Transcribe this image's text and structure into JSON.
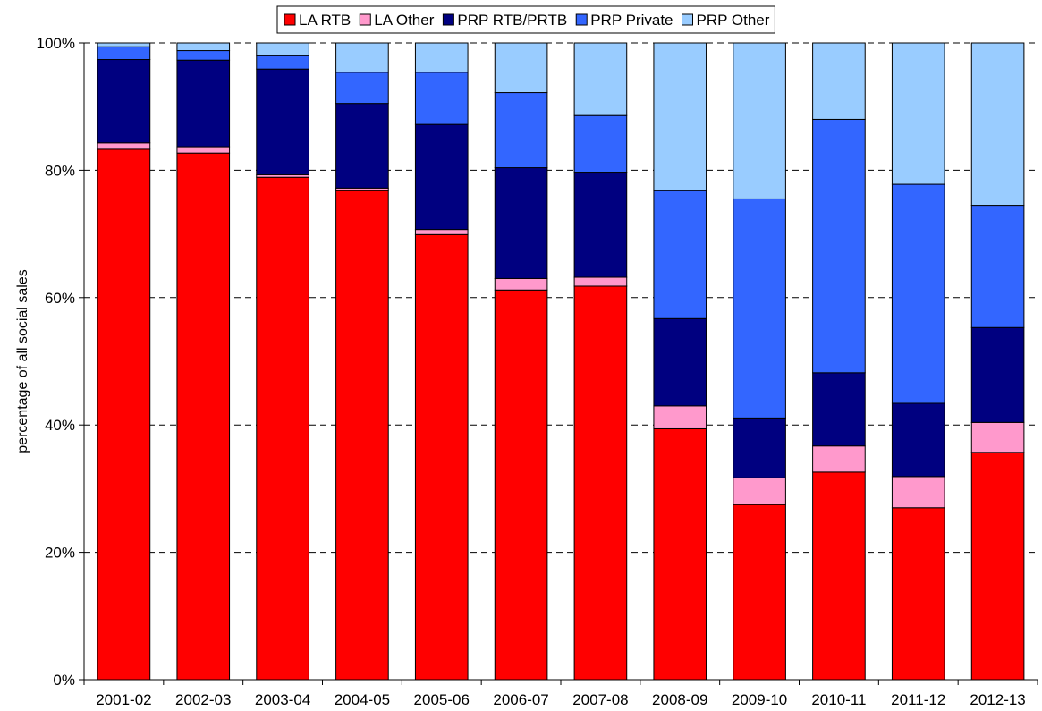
{
  "chart_data": {
    "type": "bar",
    "stacked": true,
    "percent_axis": true,
    "title": "",
    "xlabel": "",
    "ylabel": "percentage of all social sales",
    "ylim": [
      0,
      100
    ],
    "y_ticks": [
      0,
      20,
      40,
      60,
      80,
      100
    ],
    "y_tick_labels": [
      "0%",
      "20%",
      "40%",
      "60%",
      "80%",
      "100%"
    ],
    "grid": "horizontal dashed",
    "legend_position": "top",
    "categories": [
      "2001-02",
      "2002-03",
      "2003-04",
      "2004-05",
      "2005-06",
      "2006-07",
      "2007-08",
      "2008-09",
      "2009-10",
      "2010-11",
      "2011-12",
      "2012-13"
    ],
    "series": [
      {
        "name": "LA RTB",
        "color": "#ff0000",
        "values": [
          83.3,
          82.7,
          78.9,
          76.8,
          69.9,
          61.2,
          61.8,
          39.4,
          27.5,
          32.6,
          27.0,
          35.7
        ]
      },
      {
        "name": "LA Other",
        "color": "#ff99cc",
        "values": [
          1.0,
          1.0,
          0.4,
          0.4,
          0.8,
          1.8,
          1.4,
          3.6,
          4.2,
          4.1,
          4.9,
          4.7
        ]
      },
      {
        "name": "PRP RTB/PRTB",
        "color": "#000080",
        "values": [
          13.1,
          13.6,
          16.6,
          13.3,
          16.5,
          17.4,
          16.5,
          13.7,
          9.4,
          11.5,
          11.5,
          14.9
        ]
      },
      {
        "name": "PRP Private",
        "color": "#3366ff",
        "values": [
          2.0,
          1.5,
          2.1,
          4.9,
          8.2,
          11.8,
          8.9,
          20.1,
          34.4,
          39.8,
          34.4,
          19.2
        ]
      },
      {
        "name": "PRP Other",
        "color": "#99ccff",
        "values": [
          0.6,
          1.2,
          2.0,
          4.6,
          4.6,
          7.8,
          11.4,
          23.2,
          24.5,
          12.0,
          22.2,
          25.5
        ]
      }
    ]
  }
}
